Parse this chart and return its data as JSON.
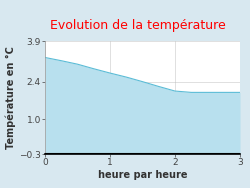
{
  "title": "Evolution de la température",
  "title_color": "#ff0000",
  "xlabel": "heure par heure",
  "ylabel": "Température en °C",
  "xlim": [
    0,
    3
  ],
  "ylim": [
    -0.3,
    3.9
  ],
  "xticks": [
    0,
    1,
    2,
    3
  ],
  "yticks": [
    -0.3,
    1.0,
    2.4,
    3.9
  ],
  "x_data": [
    0,
    0.25,
    0.5,
    0.75,
    1.0,
    1.25,
    1.5,
    1.75,
    2.0,
    2.25,
    2.5,
    2.75,
    3.0
  ],
  "y_data": [
    3.3,
    3.18,
    3.05,
    2.88,
    2.72,
    2.57,
    2.4,
    2.22,
    2.05,
    2.0,
    2.0,
    2.0,
    2.0
  ],
  "line_color": "#5bbcd6",
  "fill_color": "#b8e0ee",
  "fill_alpha": 1.0,
  "background_color": "#d8e8f0",
  "plot_bg_color": "#ffffff",
  "grid_color": "#bbbbbb",
  "baseline": -0.3,
  "title_fontsize": 9,
  "axis_label_fontsize": 7,
  "tick_fontsize": 6.5
}
